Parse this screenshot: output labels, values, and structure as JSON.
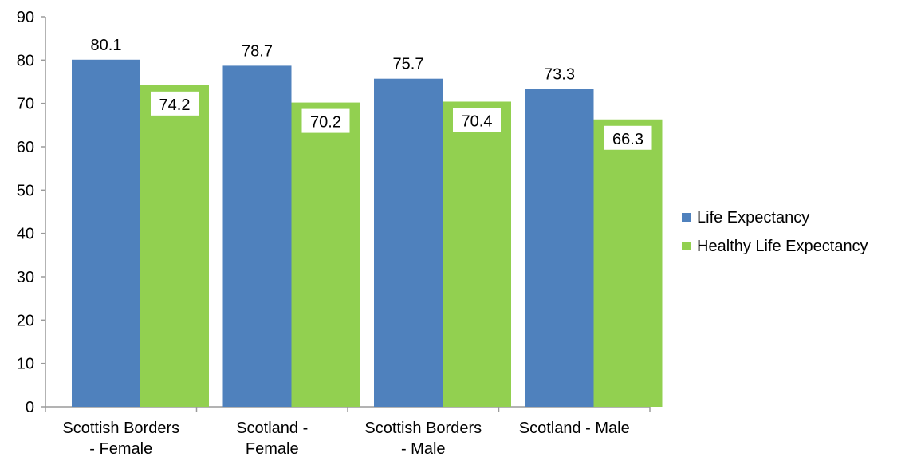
{
  "chart_data": {
    "type": "bar",
    "categories": [
      [
        "Scottish Borders",
        "- Female"
      ],
      [
        "Scotland -",
        "Female"
      ],
      [
        "Scottish Borders",
        "- Male"
      ],
      [
        "Scotland - Male"
      ]
    ],
    "series": [
      {
        "name": "Life Expectancy",
        "values": [
          80.1,
          78.7,
          75.7,
          73.3
        ],
        "color": "#4f81bd",
        "label_style": "plain"
      },
      {
        "name": "Healthy Life Expectancy",
        "values": [
          74.2,
          70.2,
          70.4,
          66.3
        ],
        "color": "#92d050",
        "label_style": "boxed"
      }
    ],
    "ylim": [
      0,
      90
    ],
    "yticks": [
      0,
      10,
      20,
      30,
      40,
      50,
      60,
      70,
      80,
      90
    ],
    "grid": false,
    "legend_position": "right",
    "title": "",
    "xlabel": "",
    "ylabel": ""
  }
}
